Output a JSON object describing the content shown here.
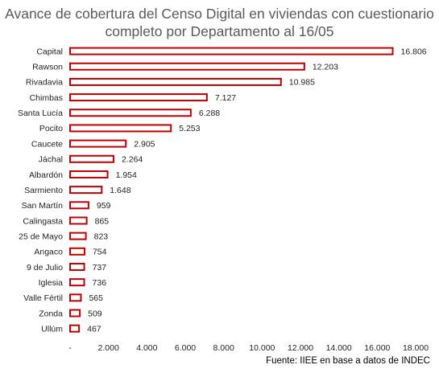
{
  "chart_data": {
    "type": "bar",
    "orientation": "horizontal",
    "title": "Avance de cobertura del Censo Digital en viviendas con cuestionario completo por Departamento al 16/05",
    "categories": [
      "Capital",
      "Rawson",
      "Rivadavia",
      "Chimbas",
      "Santa Lucía",
      "Pocito",
      "Caucete",
      "Jáchal",
      "Albardón",
      "Sarmiento",
      "San Martín",
      "Calingasta",
      "25 de Mayo",
      "Angaco",
      "9 de Julio",
      "Iglesia",
      "Valle Fértil",
      "Zonda",
      "Ullúm"
    ],
    "values": [
      16806,
      12203,
      10985,
      7127,
      6288,
      5253,
      2905,
      2264,
      1954,
      1648,
      959,
      865,
      823,
      754,
      737,
      736,
      565,
      509,
      467
    ],
    "data_labels": [
      "16.806",
      "12.203",
      "10.985",
      "7.127",
      "6.288",
      "5.253",
      "2.905",
      "2.264",
      "1.954",
      "1.648",
      "959",
      "865",
      "823",
      "754",
      "737",
      "736",
      "565",
      "509",
      "467"
    ],
    "xlim": [
      0,
      18000
    ],
    "x_ticks": [
      0,
      2000,
      4000,
      6000,
      8000,
      10000,
      12000,
      14000,
      16000,
      18000
    ],
    "x_tick_labels": [
      "-",
      "2.000",
      "4.000",
      "6.000",
      "8.000",
      "10.000",
      "12.000",
      "14.000",
      "16.000",
      "18.000"
    ],
    "bar_color": "#c00000",
    "bar_fill": "#ffffff",
    "grid": false,
    "legend": "none",
    "source": "Fuente:  IIEE en base a datos de INDEC"
  }
}
